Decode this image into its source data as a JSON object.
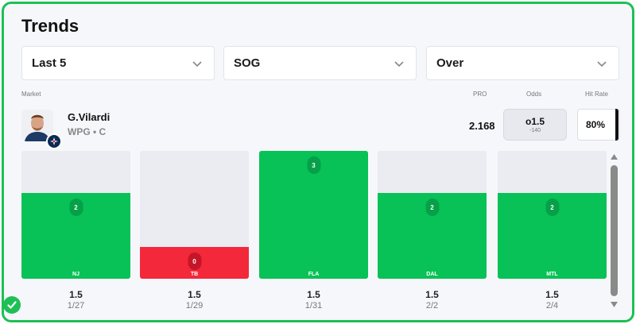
{
  "title": "Trends",
  "filters": [
    {
      "label": "Last 5"
    },
    {
      "label": "SOG"
    },
    {
      "label": "Over"
    }
  ],
  "headers": {
    "market": "Market",
    "pro": "PRO",
    "odds": "Odds",
    "hit_rate": "Hit Rate"
  },
  "player": {
    "name": "G.Vilardi",
    "meta": "WPG • C"
  },
  "pro_value": "2.168",
  "odds": {
    "line": "o1.5",
    "price": "-140"
  },
  "hit_rate": "80%",
  "games": [
    {
      "value": "2",
      "opponent": "NJ",
      "line": "1.5",
      "date": "1/27",
      "result": "over",
      "fill": 0.67
    },
    {
      "value": "0",
      "opponent": "TB",
      "line": "1.5",
      "date": "1/29",
      "result": "under",
      "fill": 0.25
    },
    {
      "value": "3",
      "opponent": "FLA",
      "line": "1.5",
      "date": "1/31",
      "result": "over",
      "fill": 1.0
    },
    {
      "value": "2",
      "opponent": "DAL",
      "line": "1.5",
      "date": "2/2",
      "result": "over",
      "fill": 0.67
    },
    {
      "value": "2",
      "opponent": "MTL",
      "line": "1.5",
      "date": "2/4",
      "result": "over",
      "fill": 0.67
    }
  ],
  "colors": {
    "over": "#08c257",
    "under": "#f4283b",
    "accent": "#1fbf55",
    "empty": "#ebebf2"
  },
  "icons": {
    "dropdown": "chevron-down-icon",
    "team": "jets-logo-icon",
    "status": "check-circle-icon"
  }
}
